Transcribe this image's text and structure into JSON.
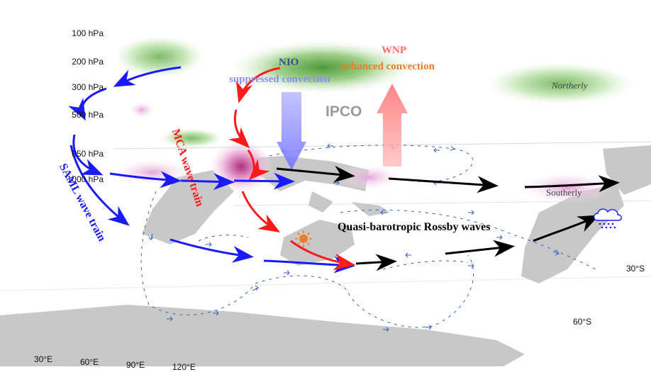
{
  "pressure_levels": [
    "100 hPa",
    "200 hPa",
    "300 hPa",
    "500 hPa",
    "850 hPa",
    "1000 hPa"
  ],
  "longitudes": [
    "30°E",
    "60°E",
    "90°E",
    "120°E"
  ],
  "latitudes": [
    "30°S",
    "60°S"
  ],
  "labels": {
    "nio": "NIO",
    "suppressed": "suppressed convection",
    "wnp": "WNP",
    "enhanced": "enhanced convection",
    "ipco": "IPCO",
    "northerly": "Northerly",
    "southerly": "Southerly",
    "mca": "MCA wave train",
    "saml": "SAML wave train",
    "rossby": "Quasi-barotropic Rossby waves"
  },
  "colors": {
    "blue_arrow": "#1a1aff",
    "red_arrow": "#ff1a1a",
    "black_arrow": "#000000",
    "land": "#c8c8c8",
    "green_anomaly": "#6aa84f",
    "pink_anomaly": "#e6a0d6",
    "suppressed_arrow": "#8c8cff",
    "enhanced_arrow": "#ff8c8c",
    "small_flux_arrow": "#3a5fbf",
    "orange_text": "#e87d2a"
  },
  "icons": [
    "sun-icon",
    "rain-cloud-icon"
  ]
}
